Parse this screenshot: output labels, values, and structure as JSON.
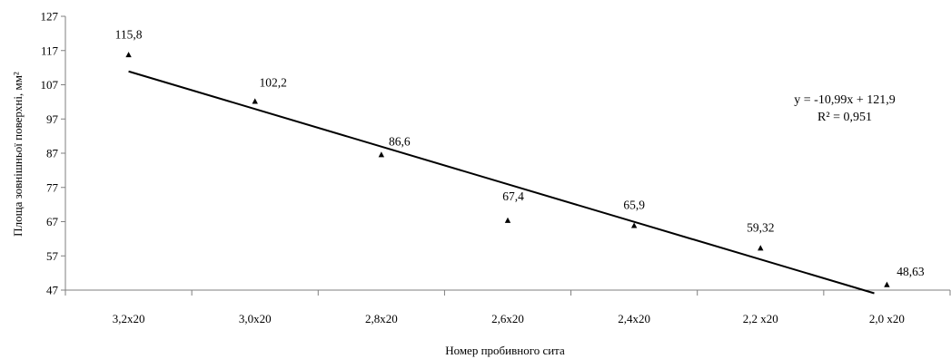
{
  "chart_data": {
    "type": "scatter",
    "categories": [
      "3,2x20",
      "3,0x20",
      "2,8x20",
      "2,6x20",
      "2,4x20",
      "2,2 x20",
      "2,0 x20"
    ],
    "series": [
      {
        "marker": "triangle",
        "values": [
          115.8,
          102.2,
          86.6,
          67.4,
          65.9,
          59.32,
          48.63
        ],
        "labels": [
          "115,8",
          "102,2",
          "86,6",
          "67,4",
          "65,9",
          "59,32",
          "48,63"
        ]
      }
    ],
    "trendline": {
      "type": "linear",
      "slope": -10.99,
      "intercept": 121.9,
      "equation": "y = -10,99x + 121,9",
      "r_squared": "R² = 0,951"
    },
    "xlabel": "Номер пробивного сита",
    "ylabel": "Площа зовнішньої поверхні, мм²",
    "ylim": [
      47,
      127
    ],
    "yticks": [
      "47",
      "57",
      "67",
      "77",
      "87",
      "97",
      "107",
      "117",
      "127"
    ],
    "grid": false,
    "legend": "none",
    "colors": {
      "line": "#000000",
      "marker": "#000000",
      "axis": "#7f7f7f"
    }
  }
}
